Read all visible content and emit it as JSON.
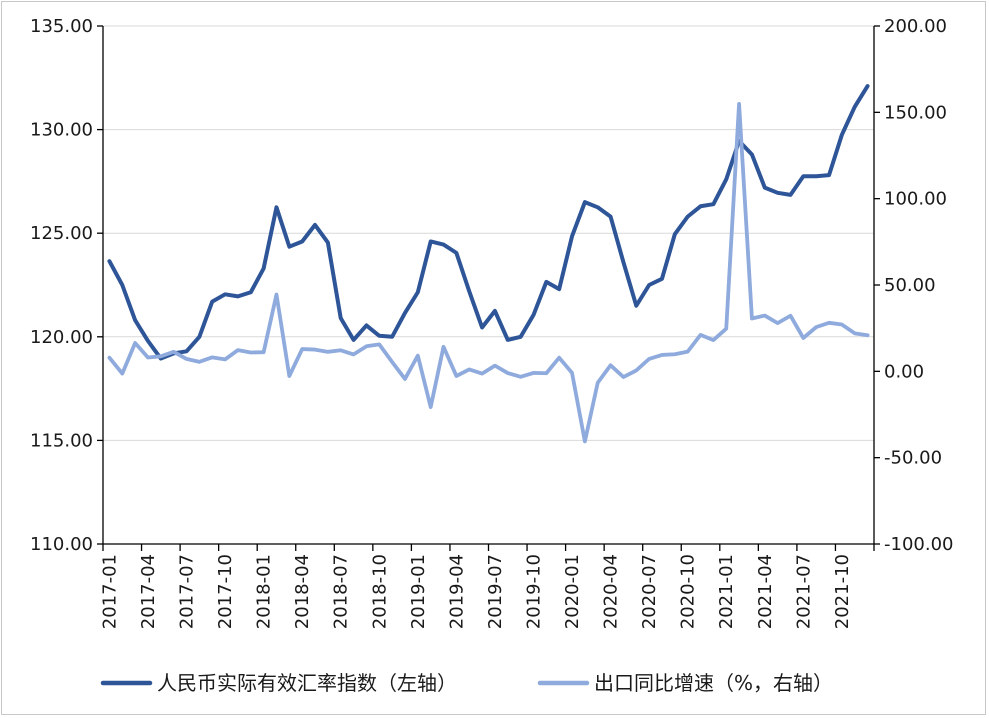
{
  "chart_data": {
    "type": "line",
    "title": "",
    "x": [
      "2017-01",
      "2017-02",
      "2017-03",
      "2017-04",
      "2017-05",
      "2017-06",
      "2017-07",
      "2017-08",
      "2017-09",
      "2017-10",
      "2017-11",
      "2017-12",
      "2018-01",
      "2018-02",
      "2018-03",
      "2018-04",
      "2018-05",
      "2018-06",
      "2018-07",
      "2018-08",
      "2018-09",
      "2018-10",
      "2018-11",
      "2018-12",
      "2019-01",
      "2019-02",
      "2019-03",
      "2019-04",
      "2019-05",
      "2019-06",
      "2019-07",
      "2019-08",
      "2019-09",
      "2019-10",
      "2019-11",
      "2019-12",
      "2020-01",
      "2020-02",
      "2020-03",
      "2020-04",
      "2020-05",
      "2020-06",
      "2020-07",
      "2020-08",
      "2020-09",
      "2020-10",
      "2020-11",
      "2020-12",
      "2021-01",
      "2021-02",
      "2021-03",
      "2021-04",
      "2021-05",
      "2021-06",
      "2021-07",
      "2021-08",
      "2021-09",
      "2021-10",
      "2021-11",
      "2021-12"
    ],
    "x_tick_labels": [
      "2017-01",
      "2017-04",
      "2017-07",
      "2017-10",
      "2018-01",
      "2018-04",
      "2018-07",
      "2018-10",
      "2019-01",
      "2019-04",
      "2019-07",
      "2019-10",
      "2020-01",
      "2020-04",
      "2020-07",
      "2020-10",
      "2021-01",
      "2021-04",
      "2021-07",
      "2021-10"
    ],
    "y_left": {
      "min": 110,
      "max": 135,
      "ticks": [
        "110.00",
        "115.00",
        "120.00",
        "125.00",
        "130.00",
        "135.00"
      ]
    },
    "y_right": {
      "min": -100,
      "max": 200,
      "ticks": [
        "-100.00",
        "-50.00",
        "0.00",
        "50.00",
        "100.00",
        "150.00",
        "200.00"
      ]
    },
    "grid": true,
    "legend_position": "bottom",
    "series": [
      {
        "name": "人民币实际有效汇率指数（左轴）",
        "axis": "left",
        "color": "#2e5597",
        "values": [
          123.65,
          122.5,
          120.8,
          119.8,
          118.95,
          119.2,
          119.3,
          120.0,
          121.7,
          122.05,
          121.95,
          122.15,
          123.3,
          126.25,
          124.35,
          124.6,
          125.4,
          124.55,
          120.9,
          119.85,
          120.55,
          120.05,
          120.0,
          121.15,
          122.15,
          124.6,
          124.45,
          124.05,
          122.2,
          120.45,
          121.25,
          119.85,
          120.0,
          121.05,
          122.65,
          122.3,
          124.85,
          126.5,
          126.25,
          125.8,
          123.6,
          121.5,
          122.5,
          122.8,
          124.95,
          125.8,
          126.3,
          126.4,
          127.6,
          129.45,
          128.8,
          127.2,
          126.95,
          126.85,
          127.75,
          127.75,
          127.8,
          129.75,
          131.1,
          132.1
        ]
      },
      {
        "name": "出口同比增速（%，右轴）",
        "axis": "right",
        "color": "#8faadc",
        "values": [
          7.9,
          -1.3,
          16.4,
          8.0,
          8.7,
          11.3,
          7.2,
          5.5,
          8.1,
          6.9,
          12.3,
          10.9,
          11.1,
          44.5,
          -2.7,
          12.9,
          12.6,
          11.3,
          12.2,
          9.8,
          14.5,
          15.6,
          5.4,
          -4.4,
          9.1,
          -20.7,
          14.2,
          -2.7,
          1.1,
          -1.3,
          3.3,
          -1.0,
          -3.2,
          -0.9,
          -1.1,
          7.9,
          -0.9,
          -40.6,
          -6.6,
          3.5,
          -3.3,
          0.5,
          7.2,
          9.5,
          9.9,
          11.4,
          21.1,
          18.1,
          24.7,
          154.9,
          30.6,
          32.3,
          27.9,
          32.2,
          19.3,
          25.6,
          28.1,
          27.1,
          22.0,
          20.9
        ]
      }
    ]
  },
  "legend": {
    "items": [
      {
        "label": "人民币实际有效汇率指数（左轴）",
        "color": "#2e5597"
      },
      {
        "label": "出口同比增速（%，右轴）",
        "color": "#8faadc"
      }
    ]
  }
}
